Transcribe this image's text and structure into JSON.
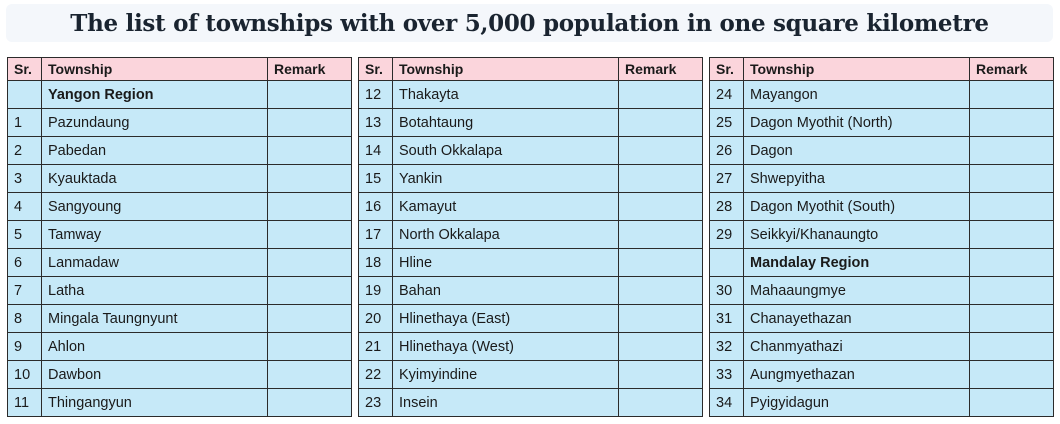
{
  "title": "The list of townships with over 5,000 population in one square kilometre",
  "headers": {
    "sr": "Sr.",
    "township": "Township",
    "remark": "Remark"
  },
  "tables": [
    {
      "rows": [
        {
          "sr": "",
          "name": "Yangon Region",
          "remark": "",
          "heading": true
        },
        {
          "sr": "1",
          "name": "Pazundaung",
          "remark": ""
        },
        {
          "sr": "2",
          "name": "Pabedan",
          "remark": ""
        },
        {
          "sr": "3",
          "name": "Kyauktada",
          "remark": ""
        },
        {
          "sr": "4",
          "name": "Sangyoung",
          "remark": ""
        },
        {
          "sr": "5",
          "name": "Tamway",
          "remark": ""
        },
        {
          "sr": "6",
          "name": "Lanmadaw",
          "remark": ""
        },
        {
          "sr": "7",
          "name": "Latha",
          "remark": ""
        },
        {
          "sr": "8",
          "name": "Mingala Taungnyunt",
          "remark": ""
        },
        {
          "sr": "9",
          "name": "Ahlon",
          "remark": ""
        },
        {
          "sr": "10",
          "name": "Dawbon",
          "remark": ""
        },
        {
          "sr": "11",
          "name": "Thingangyun",
          "remark": ""
        }
      ]
    },
    {
      "rows": [
        {
          "sr": "12",
          "name": "Thakayta",
          "remark": ""
        },
        {
          "sr": "13",
          "name": "Botahtaung",
          "remark": ""
        },
        {
          "sr": "14",
          "name": "South Okkalapa",
          "remark": ""
        },
        {
          "sr": "15",
          "name": "Yankin",
          "remark": ""
        },
        {
          "sr": "16",
          "name": "Kamayut",
          "remark": ""
        },
        {
          "sr": "17",
          "name": "North Okkalapa",
          "remark": ""
        },
        {
          "sr": "18",
          "name": "Hline",
          "remark": ""
        },
        {
          "sr": "19",
          "name": "Bahan",
          "remark": ""
        },
        {
          "sr": "20",
          "name": "Hlinethaya (East)",
          "remark": ""
        },
        {
          "sr": "21",
          "name": "Hlinethaya (West)",
          "remark": ""
        },
        {
          "sr": "22",
          "name": "Kyimyindine",
          "remark": ""
        },
        {
          "sr": "23",
          "name": "Insein",
          "remark": ""
        }
      ]
    },
    {
      "rows": [
        {
          "sr": "24",
          "name": "Mayangon",
          "remark": ""
        },
        {
          "sr": "25",
          "name": "Dagon Myothit (North)",
          "remark": ""
        },
        {
          "sr": "26",
          "name": "Dagon",
          "remark": ""
        },
        {
          "sr": "27",
          "name": "Shwepyitha",
          "remark": ""
        },
        {
          "sr": "28",
          "name": "Dagon Myothit (South)",
          "remark": ""
        },
        {
          "sr": "29",
          "name": "Seikkyi/Khanaungto",
          "remark": ""
        },
        {
          "sr": "",
          "name": "Mandalay Region",
          "remark": "",
          "heading": true
        },
        {
          "sr": "30",
          "name": "Mahaaungmye",
          "remark": ""
        },
        {
          "sr": "31",
          "name": "Chanayethazan",
          "remark": ""
        },
        {
          "sr": "32",
          "name": "Chanmyathazi",
          "remark": ""
        },
        {
          "sr": "33",
          "name": "Aungmyethazan",
          "remark": ""
        },
        {
          "sr": "34",
          "name": "Pyigyidagun",
          "remark": ""
        }
      ]
    }
  ],
  "colors": {
    "header_bg": "#fbd5dc",
    "cell_bg": "#c6e9f8",
    "border": "#2b2b2b",
    "title_bg": "#f4f7fb"
  }
}
